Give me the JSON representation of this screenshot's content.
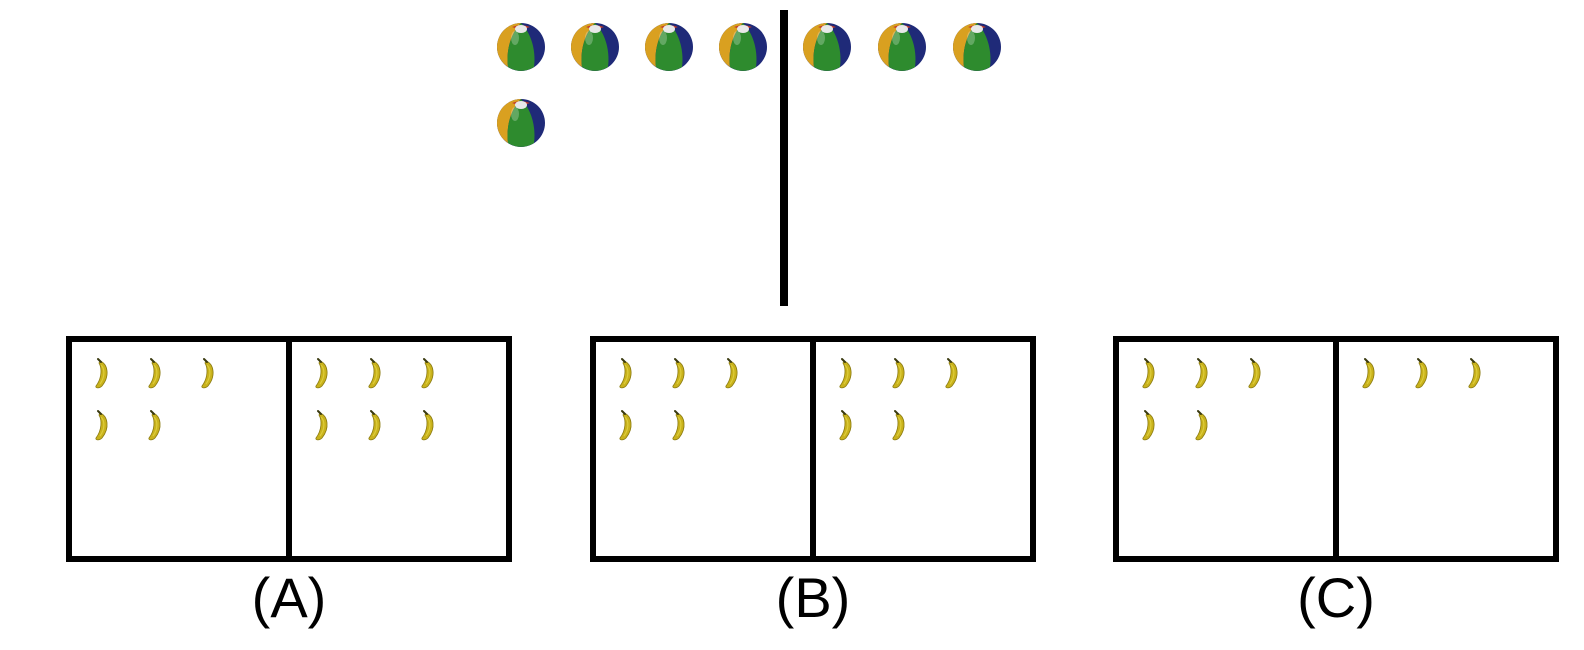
{
  "top": {
    "left_count": 5,
    "right_count": 3,
    "icon": "beach-ball-icon"
  },
  "options": [
    {
      "label": "(A)",
      "left_count": 5,
      "right_count": 6,
      "icon": "banana-icon"
    },
    {
      "label": "(B)",
      "left_count": 5,
      "right_count": 5,
      "icon": "banana-icon"
    },
    {
      "label": "(C)",
      "left_count": 5,
      "right_count": 3,
      "icon": "banana-icon"
    }
  ],
  "colors": {
    "ball_green": "#2e8b2e",
    "ball_orange": "#d9a020",
    "ball_navy": "#1f2a78",
    "ball_red": "#c0392b",
    "banana_yellow": "#c9b21c",
    "line": "#000000"
  }
}
